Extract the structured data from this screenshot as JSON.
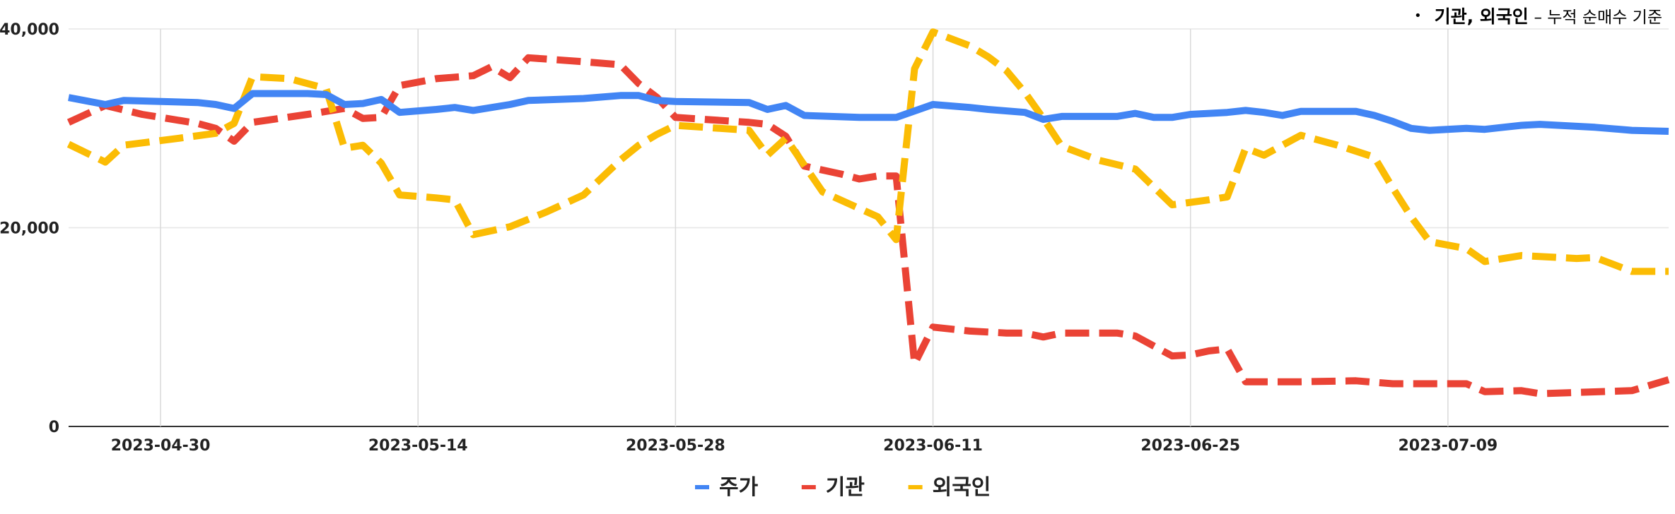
{
  "note": {
    "bullet": "•",
    "main": "기관, 외국인",
    "sub": "– 누적 순매수 기준"
  },
  "chart_data": {
    "type": "line",
    "title": "",
    "xlabel": "",
    "ylabel": "",
    "ylim": [
      0,
      40000
    ],
    "yticks": [
      0,
      20000,
      40000
    ],
    "ytick_labels": [
      "0",
      "20,000",
      "40,000"
    ],
    "x_range": [
      "2023-04-25",
      "2023-07-21"
    ],
    "xticks": [
      "2023-04-30",
      "2023-05-14",
      "2023-05-28",
      "2023-06-11",
      "2023-06-25",
      "2023-07-09"
    ],
    "grid": "vertical-at-ticks, horizontal-at-ticks",
    "legend": "bottom-center",
    "series": [
      {
        "name": "주가",
        "color": "#4285F4",
        "style": "solid",
        "points": [
          [
            "2023-04-25",
            33100
          ],
          [
            "2023-04-27",
            32400
          ],
          [
            "2023-04-28",
            32800
          ],
          [
            "2023-05-02",
            32600
          ],
          [
            "2023-05-03",
            32400
          ],
          [
            "2023-05-04",
            32000
          ],
          [
            "2023-05-05",
            33500
          ],
          [
            "2023-05-08",
            33500
          ],
          [
            "2023-05-09",
            33400
          ],
          [
            "2023-05-10",
            32400
          ],
          [
            "2023-05-11",
            32500
          ],
          [
            "2023-05-12",
            32900
          ],
          [
            "2023-05-13",
            31600
          ],
          [
            "2023-05-15",
            31900
          ],
          [
            "2023-05-16",
            32100
          ],
          [
            "2023-05-17",
            31800
          ],
          [
            "2023-05-19",
            32400
          ],
          [
            "2023-05-20",
            32800
          ],
          [
            "2023-05-23",
            33000
          ],
          [
            "2023-05-25",
            33300
          ],
          [
            "2023-05-26",
            33300
          ],
          [
            "2023-05-27",
            32800
          ],
          [
            "2023-05-28",
            32700
          ],
          [
            "2023-06-01",
            32600
          ],
          [
            "2023-06-02",
            31900
          ],
          [
            "2023-06-03",
            32300
          ],
          [
            "2023-06-04",
            31300
          ],
          [
            "2023-06-07",
            31100
          ],
          [
            "2023-06-09",
            31100
          ],
          [
            "2023-06-11",
            32400
          ],
          [
            "2023-06-13",
            32100
          ],
          [
            "2023-06-14",
            31900
          ],
          [
            "2023-06-16",
            31600
          ],
          [
            "2023-06-17",
            30900
          ],
          [
            "2023-06-18",
            31200
          ],
          [
            "2023-06-20",
            31200
          ],
          [
            "2023-06-21",
            31200
          ],
          [
            "2023-06-22",
            31500
          ],
          [
            "2023-06-23",
            31100
          ],
          [
            "2023-06-24",
            31100
          ],
          [
            "2023-06-25",
            31400
          ],
          [
            "2023-06-27",
            31600
          ],
          [
            "2023-06-28",
            31800
          ],
          [
            "2023-06-29",
            31600
          ],
          [
            "2023-06-30",
            31300
          ],
          [
            "2023-07-01",
            31700
          ],
          [
            "2023-07-03",
            31700
          ],
          [
            "2023-07-04",
            31700
          ],
          [
            "2023-07-05",
            31300
          ],
          [
            "2023-07-06",
            30700
          ],
          [
            "2023-07-07",
            30000
          ],
          [
            "2023-07-08",
            29800
          ],
          [
            "2023-07-10",
            30000
          ],
          [
            "2023-07-11",
            29900
          ],
          [
            "2023-07-12",
            30100
          ],
          [
            "2023-07-13",
            30300
          ],
          [
            "2023-07-14",
            30400
          ],
          [
            "2023-07-17",
            30100
          ],
          [
            "2023-07-19",
            29800
          ],
          [
            "2023-07-21",
            29700
          ]
        ]
      },
      {
        "name": "기관",
        "color": "#EA4335",
        "style": "dashed",
        "points": [
          [
            "2023-04-25",
            30600
          ],
          [
            "2023-04-27",
            32300
          ],
          [
            "2023-04-29",
            31400
          ],
          [
            "2023-05-02",
            30500
          ],
          [
            "2023-05-03",
            30000
          ],
          [
            "2023-05-04",
            28700
          ],
          [
            "2023-05-05",
            30600
          ],
          [
            "2023-05-08",
            31400
          ],
          [
            "2023-05-10",
            32000
          ],
          [
            "2023-05-11",
            31000
          ],
          [
            "2023-05-12",
            31100
          ],
          [
            "2023-05-13",
            34300
          ],
          [
            "2023-05-15",
            35000
          ],
          [
            "2023-05-17",
            35300
          ],
          [
            "2023-05-18",
            36200
          ],
          [
            "2023-05-19",
            35100
          ],
          [
            "2023-05-20",
            37100
          ],
          [
            "2023-05-23",
            36700
          ],
          [
            "2023-05-25",
            36400
          ],
          [
            "2023-05-26",
            34500
          ],
          [
            "2023-05-27",
            33100
          ],
          [
            "2023-05-28",
            31100
          ],
          [
            "2023-06-01",
            30600
          ],
          [
            "2023-06-02",
            30400
          ],
          [
            "2023-06-03",
            29200
          ],
          [
            "2023-06-04",
            26200
          ],
          [
            "2023-06-06",
            25400
          ],
          [
            "2023-06-07",
            24900
          ],
          [
            "2023-06-08",
            25200
          ],
          [
            "2023-06-09",
            25200
          ],
          [
            "2023-06-10",
            6300
          ],
          [
            "2023-06-11",
            10000
          ],
          [
            "2023-06-13",
            9600
          ],
          [
            "2023-06-15",
            9400
          ],
          [
            "2023-06-16",
            9400
          ],
          [
            "2023-06-17",
            9000
          ],
          [
            "2023-06-18",
            9400
          ],
          [
            "2023-06-21",
            9400
          ],
          [
            "2023-06-22",
            9100
          ],
          [
            "2023-06-24",
            7100
          ],
          [
            "2023-06-25",
            7200
          ],
          [
            "2023-06-26",
            7600
          ],
          [
            "2023-06-27",
            7800
          ],
          [
            "2023-06-28",
            4500
          ],
          [
            "2023-07-01",
            4500
          ],
          [
            "2023-07-04",
            4600
          ],
          [
            "2023-07-06",
            4300
          ],
          [
            "2023-07-10",
            4300
          ],
          [
            "2023-07-11",
            3500
          ],
          [
            "2023-07-13",
            3600
          ],
          [
            "2023-07-14",
            3300
          ],
          [
            "2023-07-19",
            3600
          ],
          [
            "2023-07-21",
            4700
          ]
        ]
      },
      {
        "name": "외국인",
        "color": "#FBBC04",
        "style": "dashed",
        "points": [
          [
            "2023-04-25",
            28400
          ],
          [
            "2023-04-27",
            26600
          ],
          [
            "2023-04-28",
            28300
          ],
          [
            "2023-05-01",
            29000
          ],
          [
            "2023-05-03",
            29500
          ],
          [
            "2023-05-04",
            30500
          ],
          [
            "2023-05-05",
            35200
          ],
          [
            "2023-05-07",
            35000
          ],
          [
            "2023-05-09",
            34000
          ],
          [
            "2023-05-10",
            28000
          ],
          [
            "2023-05-11",
            28300
          ],
          [
            "2023-05-12",
            26500
          ],
          [
            "2023-05-13",
            23300
          ],
          [
            "2023-05-15",
            23000
          ],
          [
            "2023-05-16",
            22800
          ],
          [
            "2023-05-17",
            19300
          ],
          [
            "2023-05-19",
            20100
          ],
          [
            "2023-05-21",
            21600
          ],
          [
            "2023-05-23",
            23300
          ],
          [
            "2023-05-25",
            26800
          ],
          [
            "2023-05-26",
            28300
          ],
          [
            "2023-05-27",
            29400
          ],
          [
            "2023-05-28",
            30300
          ],
          [
            "2023-06-01",
            29800
          ],
          [
            "2023-06-02",
            27300
          ],
          [
            "2023-06-03",
            29000
          ],
          [
            "2023-06-05",
            23600
          ],
          [
            "2023-06-08",
            21100
          ],
          [
            "2023-06-09",
            18800
          ],
          [
            "2023-06-10",
            36000
          ],
          [
            "2023-06-11",
            39700
          ],
          [
            "2023-06-13",
            38300
          ],
          [
            "2023-06-14",
            37200
          ],
          [
            "2023-06-15",
            35800
          ],
          [
            "2023-06-16",
            33600
          ],
          [
            "2023-06-17",
            31000
          ],
          [
            "2023-06-18",
            28200
          ],
          [
            "2023-06-20",
            26800
          ],
          [
            "2023-06-22",
            25900
          ],
          [
            "2023-06-24",
            22300
          ],
          [
            "2023-06-26",
            22800
          ],
          [
            "2023-06-27",
            23100
          ],
          [
            "2023-06-28",
            28000
          ],
          [
            "2023-06-29",
            27300
          ],
          [
            "2023-07-01",
            29300
          ],
          [
            "2023-07-03",
            28300
          ],
          [
            "2023-07-05",
            27100
          ],
          [
            "2023-07-06",
            24000
          ],
          [
            "2023-07-07",
            21100
          ],
          [
            "2023-07-08",
            18600
          ],
          [
            "2023-07-10",
            17900
          ],
          [
            "2023-07-11",
            16600
          ],
          [
            "2023-07-13",
            17200
          ],
          [
            "2023-07-16",
            16900
          ],
          [
            "2023-07-17",
            17000
          ],
          [
            "2023-07-19",
            15600
          ],
          [
            "2023-07-21",
            15600
          ]
        ]
      }
    ]
  }
}
